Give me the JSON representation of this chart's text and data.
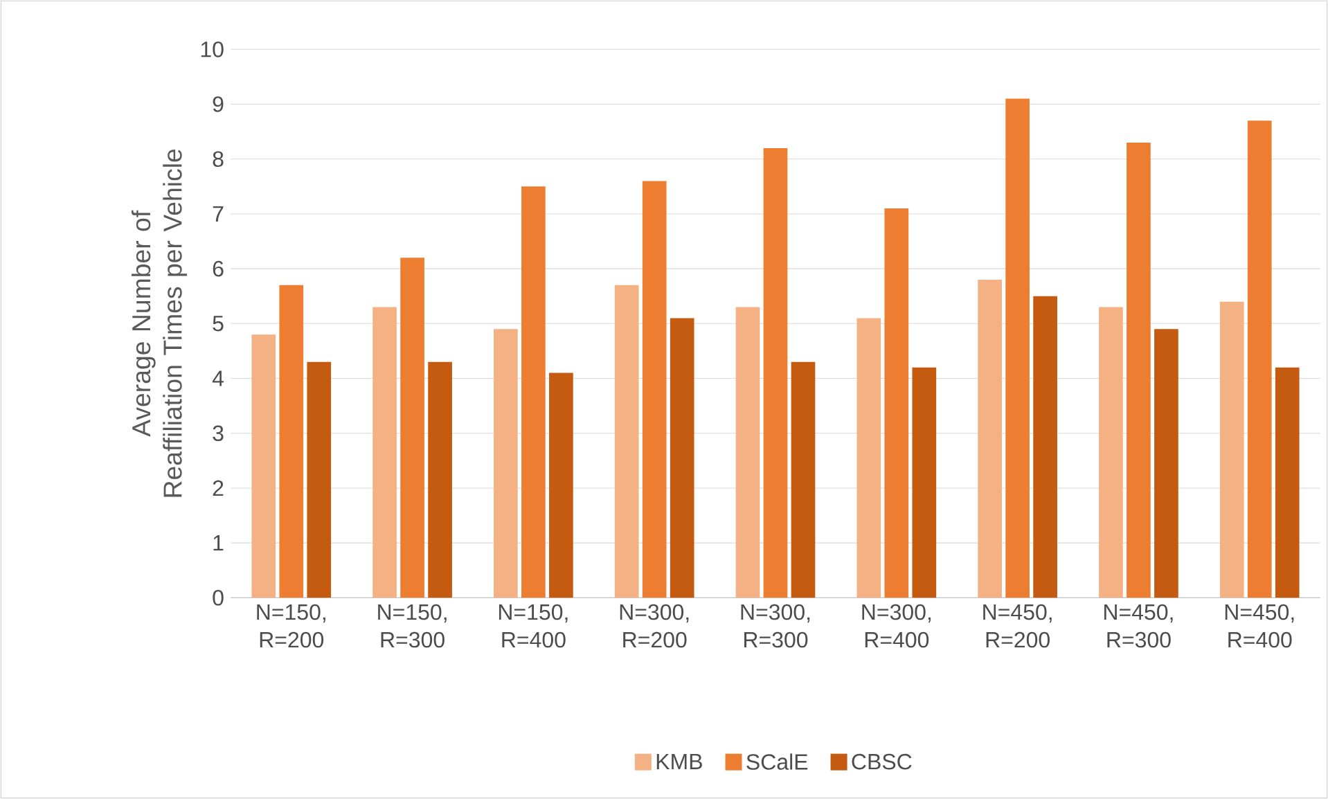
{
  "chart_data": {
    "type": "bar",
    "ylabel": "Average Number of Reaffiliation Times per Vehicle",
    "categories": [
      "N=150, R=200",
      "N=150, R=300",
      "N=150, R=400",
      "N=300, R=200",
      "N=300, R=300",
      "N=300, R=400",
      "N=450, R=200",
      "N=450, R=300",
      "N=450, R=400"
    ],
    "series": [
      {
        "name": "KMB",
        "color": "#f4b183",
        "values": [
          4.8,
          5.3,
          4.9,
          5.7,
          5.3,
          5.1,
          5.8,
          5.3,
          5.4
        ]
      },
      {
        "name": "SCalE",
        "color": "#ed7d31",
        "values": [
          5.7,
          6.2,
          7.5,
          7.6,
          8.2,
          7.1,
          9.1,
          8.3,
          8.7
        ]
      },
      {
        "name": "CBSC",
        "color": "#c55a11",
        "values": [
          4.3,
          4.3,
          4.1,
          5.1,
          4.3,
          4.2,
          5.5,
          4.9,
          4.2
        ]
      }
    ],
    "ylim": [
      0,
      10
    ],
    "yticks": [
      0,
      1,
      2,
      3,
      4,
      5,
      6,
      7,
      8,
      9,
      10
    ],
    "grid": "y",
    "legend": "bottom"
  }
}
